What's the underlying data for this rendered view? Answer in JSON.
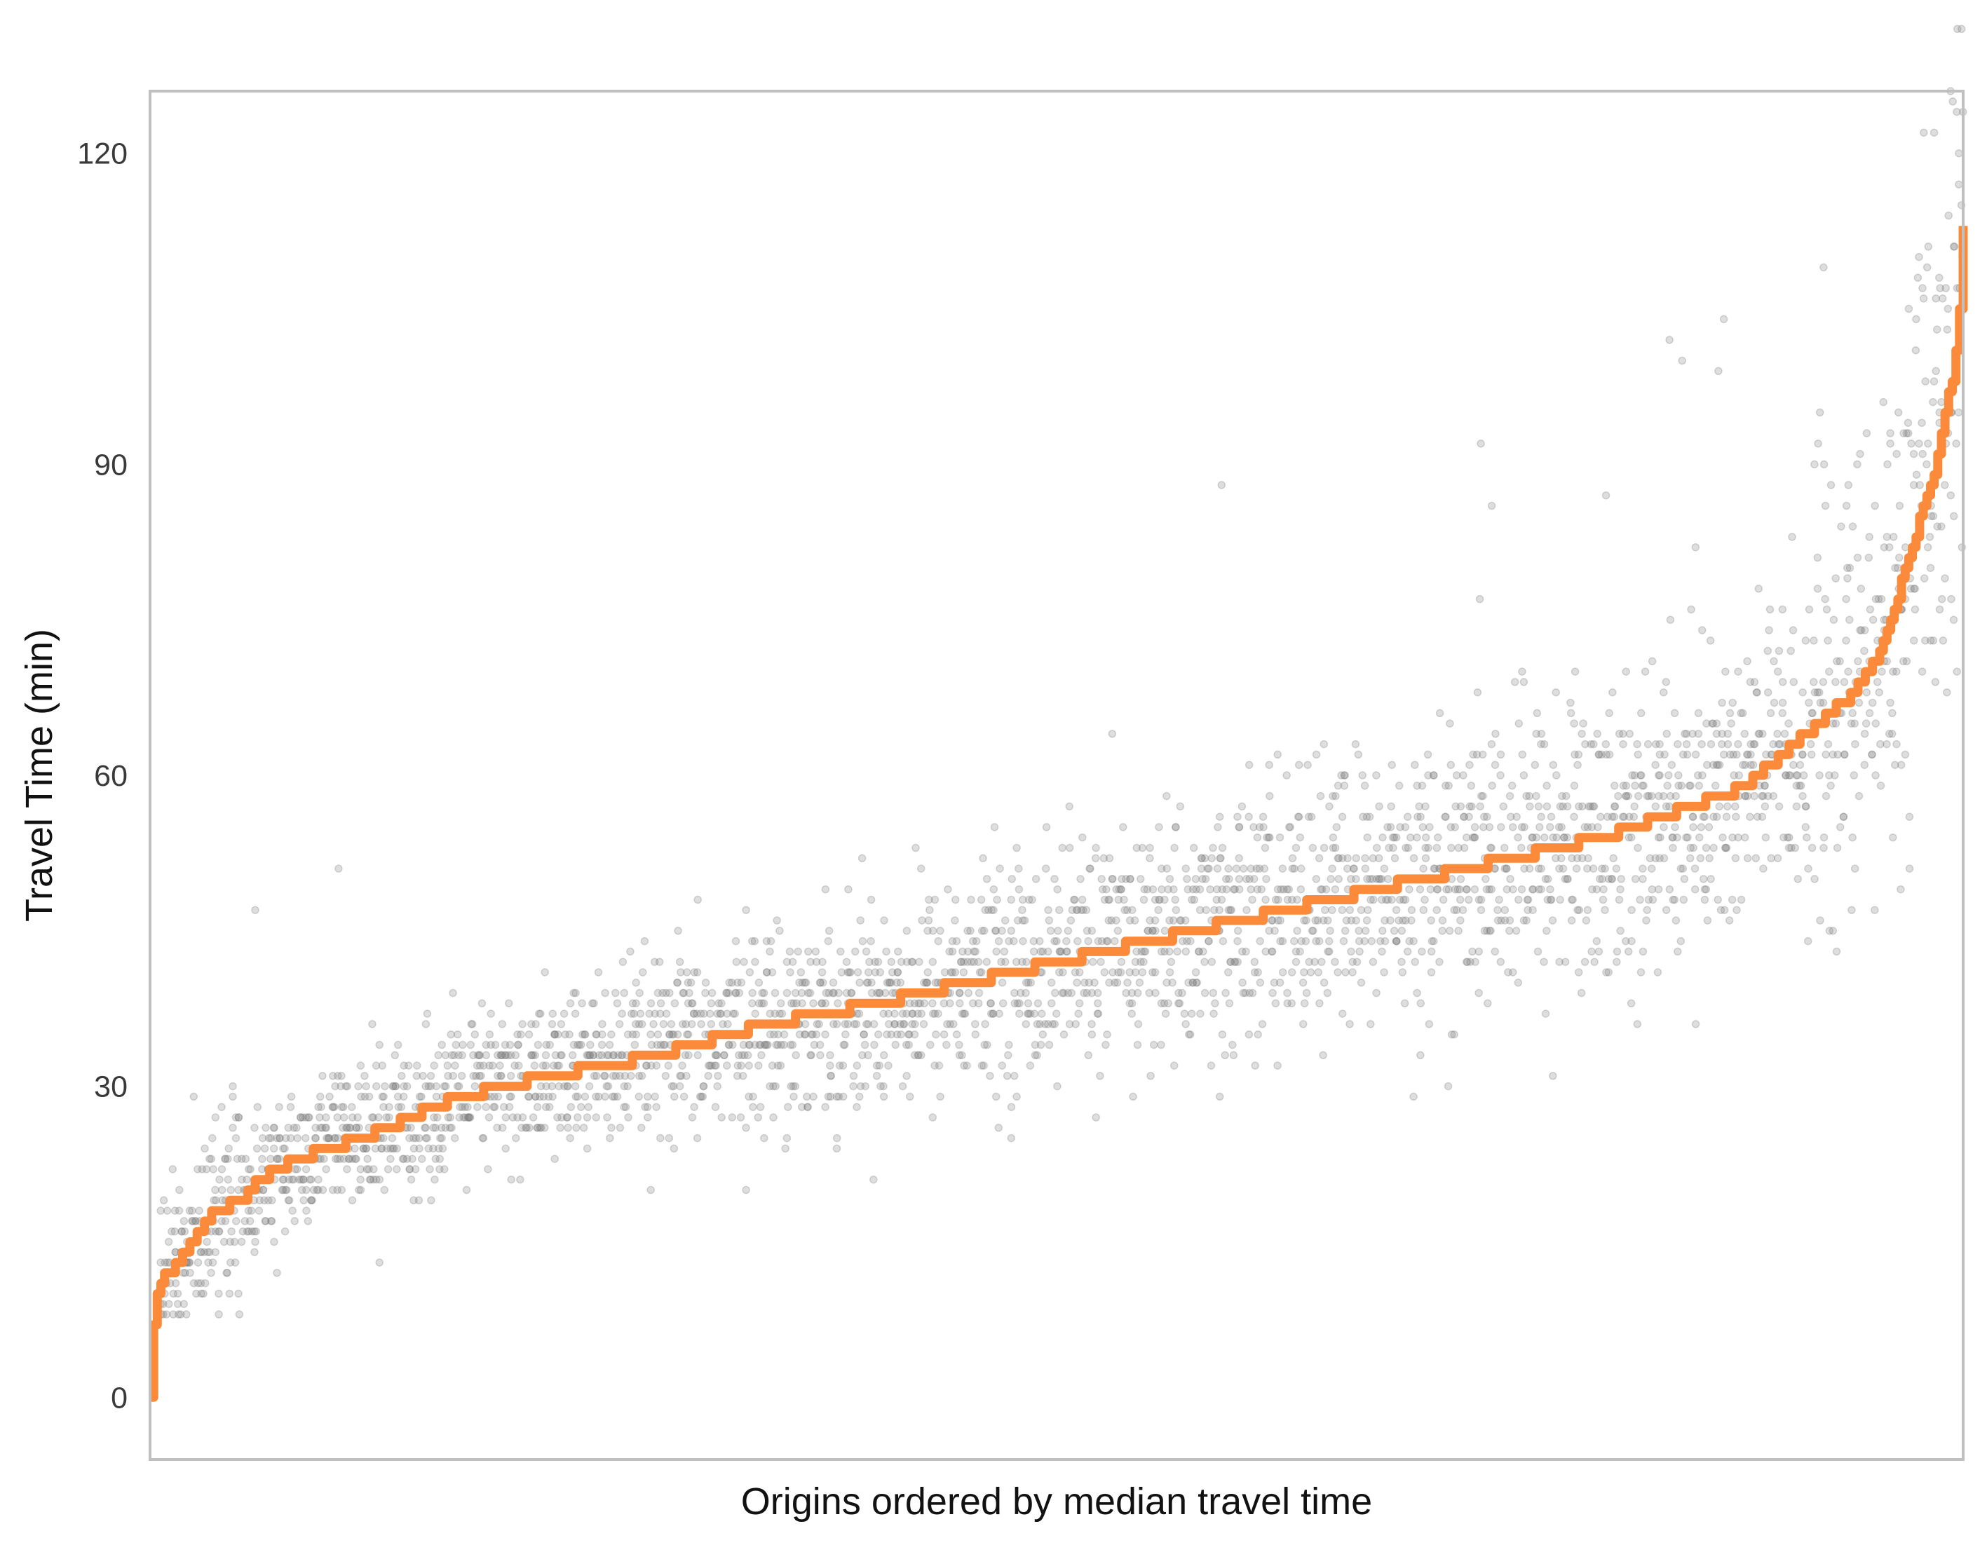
{
  "chart_data": {
    "type": "scatter",
    "title": "",
    "xlabel": "Origins ordered by median travel time",
    "ylabel": "Travel Time (min)",
    "ylim": [
      -6,
      126
    ],
    "xlim": [
      0,
      1000
    ],
    "yticks": [
      0,
      30,
      60,
      90,
      120
    ],
    "xticks": [],
    "grid": false,
    "legend": "none",
    "colors": {
      "median_line": "#fb8b3a",
      "points": "#7a7a7a",
      "frame": "#c0c0c0",
      "background": "#ffffff"
    },
    "series": [
      {
        "kind": "line",
        "color": "#fb8b3a",
        "description_points": "median travel time per origin (sorted ascending)",
        "x": [
          0,
          1,
          3,
          6,
          10,
          20,
          35,
          50,
          60,
          80,
          100,
          130,
          170,
          220,
          280,
          340,
          400,
          450,
          500,
          550,
          600,
          650,
          700,
          750,
          800,
          850,
          880,
          900,
          920,
          940,
          955,
          965,
          975,
          985,
          990,
          995,
          998,
          1000
        ],
        "y": [
          0,
          5,
          9,
          11,
          12,
          14,
          18,
          19,
          21,
          23,
          24,
          26,
          29,
          31,
          33,
          36,
          38,
          40,
          42,
          44,
          46,
          48,
          50,
          52,
          54,
          57,
          59,
          62,
          65,
          68,
          72,
          78,
          84,
          90,
          95,
          99,
          105,
          113
        ]
      },
      {
        "kind": "scatter",
        "color": "#7a7a7a",
        "opacity": 0.25,
        "description_points": "individual travel times per origin (dense cloud around median)",
        "outliers": [
          {
            "x": 58,
            "y": 47
          },
          {
            "x": 104,
            "y": 51
          },
          {
            "x": 58,
            "y": 15
          },
          {
            "x": 70,
            "y": 12
          },
          {
            "x": 590,
            "y": 29
          },
          {
            "x": 590,
            "y": 56
          },
          {
            "x": 647,
            "y": 33
          },
          {
            "x": 659,
            "y": 60
          },
          {
            "x": 734,
            "y": 92
          },
          {
            "x": 740,
            "y": 86
          },
          {
            "x": 591,
            "y": 88
          },
          {
            "x": 735,
            "y": 62
          },
          {
            "x": 765,
            "y": 66
          },
          {
            "x": 786,
            "y": 70
          },
          {
            "x": 838,
            "y": 102
          },
          {
            "x": 868,
            "y": 104
          },
          {
            "x": 865,
            "y": 99
          },
          {
            "x": 845,
            "y": 100
          },
          {
            "x": 850,
            "y": 76
          },
          {
            "x": 918,
            "y": 90
          },
          {
            "x": 923,
            "y": 109
          },
          {
            "x": 921,
            "y": 95
          },
          {
            "x": 970,
            "y": 105
          },
          {
            "x": 803,
            "y": 87
          }
        ]
      }
    ]
  }
}
